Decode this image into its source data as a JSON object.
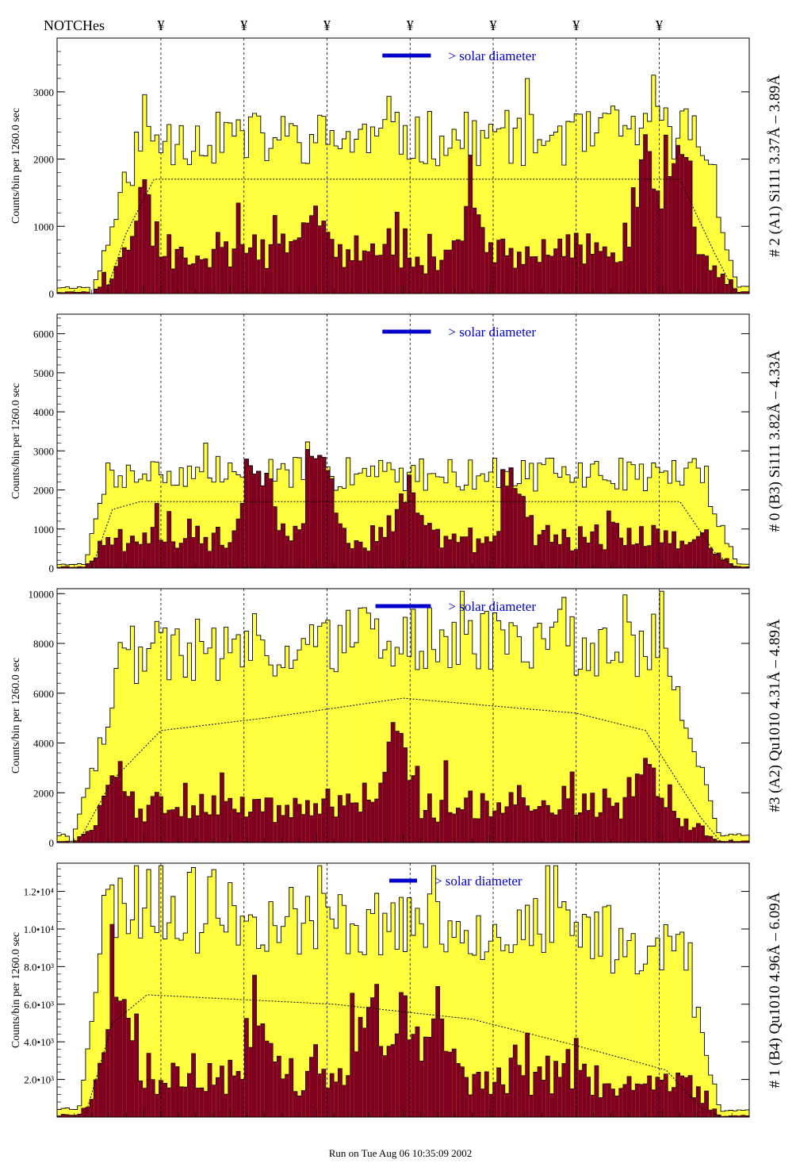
{
  "header": {
    "label": "NOTCHes",
    "marker_glyph": "¥"
  },
  "footer": "Run on Tue Aug 06 10:35:09 2002",
  "colors": {
    "fill_total": "#ffff40",
    "fill_sub": "#800020",
    "outline": "#000000",
    "annotation": "#0000cc"
  },
  "notch_positions": [
    0.15,
    0.27,
    0.39,
    0.51,
    0.63,
    0.75,
    0.87
  ],
  "chart_data": [
    {
      "type": "histogram",
      "ylabel": "Counts/bin per   1260.0 sec",
      "side_title": "# 2 (A1) Si111  3.37Å – 3.89Å",
      "ylim": [
        0,
        3800
      ],
      "yticks": [
        0,
        1000,
        2000,
        3000
      ],
      "ytick_labels": [
        "0",
        "1000",
        "2000",
        "3000"
      ],
      "solar_label": "> solar diameter",
      "solar_bar": [
        0.47,
        0.54
      ],
      "profile": {
        "start": 0.05,
        "ramp_end": 0.12,
        "fall_start": 0.93,
        "end": 0.985,
        "plateau": [
          0.5,
          0.5,
          0.5,
          0.5,
          0.6
        ],
        "peak": 2300,
        "seed": 11
      },
      "sub_profile": {
        "base": 0.25,
        "peaks": [
          [
            0.12,
            1000
          ],
          [
            0.37,
            700
          ],
          [
            0.6,
            650
          ],
          [
            0.85,
            1700
          ],
          [
            0.9,
            1600
          ]
        ],
        "seed": 31
      },
      "baseline_curve": [
        [
          0.07,
          0
        ],
        [
          0.1,
          900
        ],
        [
          0.14,
          1700
        ],
        [
          0.9,
          1700
        ],
        [
          0.95,
          600
        ],
        [
          0.98,
          0
        ]
      ]
    },
    {
      "type": "histogram",
      "ylabel": "Counts/bin per   1260.0 sec",
      "side_title": "# 0 (B3) Si111  3.82Å – 4.33Å",
      "ylim": [
        0,
        6500
      ],
      "yticks": [
        0,
        1000,
        2000,
        3000,
        4000,
        5000,
        6000
      ],
      "ytick_labels": [
        "0",
        "1000",
        "2000",
        "3000",
        "4000",
        "5000",
        "6000"
      ],
      "solar_label": "> solar diameter",
      "solar_bar": [
        0.47,
        0.54
      ],
      "profile": {
        "start": 0.04,
        "ramp_end": 0.07,
        "fall_start": 0.93,
        "end": 0.985,
        "plateau": [
          0.5,
          0.55,
          0.5,
          0.5,
          0.5
        ],
        "peak": 2400,
        "seed": 7
      },
      "sub_profile": {
        "base": 0.3,
        "peaks": [
          [
            0.29,
            4200
          ],
          [
            0.38,
            3300
          ],
          [
            0.51,
            1500
          ],
          [
            0.66,
            1600
          ]
        ],
        "seed": 43
      },
      "baseline_curve": [
        [
          0.05,
          0
        ],
        [
          0.08,
          1500
        ],
        [
          0.12,
          1700
        ],
        [
          0.9,
          1700
        ],
        [
          0.95,
          400
        ],
        [
          0.98,
          0
        ]
      ]
    },
    {
      "type": "histogram",
      "ylabel": "Counts/bin per   1260.0 sec",
      "side_title": "#3 (A2) Qu1010  4.31Å – 4.89Å",
      "ylim": [
        0,
        10200
      ],
      "yticks": [
        0,
        2000,
        4000,
        6000,
        8000,
        10000
      ],
      "ytick_labels": [
        "0",
        "2000",
        "4000",
        "6000",
        "8000",
        "10000"
      ],
      "solar_label": "> solar diameter",
      "solar_bar": [
        0.46,
        0.54
      ],
      "profile": {
        "start": 0.02,
        "ramp_end": 0.1,
        "fall_start": 0.88,
        "end": 0.96,
        "plateau": [
          0.85,
          0.9,
          1.0,
          0.95,
          0.9
        ],
        "peak": 6500,
        "seed": 19
      },
      "sub_profile": {
        "base": 0.18,
        "peaks": [
          [
            0.08,
            1800
          ],
          [
            0.49,
            3000
          ],
          [
            0.85,
            1800
          ]
        ],
        "seed": 53
      },
      "baseline_curve": [
        [
          0.03,
          0
        ],
        [
          0.08,
          2500
        ],
        [
          0.15,
          4500
        ],
        [
          0.3,
          5000
        ],
        [
          0.5,
          5800
        ],
        [
          0.75,
          5200
        ],
        [
          0.85,
          4500
        ],
        [
          0.93,
          1000
        ],
        [
          0.96,
          0
        ]
      ]
    },
    {
      "type": "histogram",
      "ylabel": "Counts/bin per   1260.0 sec",
      "side_title": "# 1 (B4) Qu1010 4.96Å – 6.09Å",
      "ylim": [
        0,
        13500
      ],
      "yticks": [
        2000,
        4000,
        6000,
        8000,
        10000,
        12000
      ],
      "ytick_labels": [
        "2.0•10³",
        "4.0•10³",
        "6.0•10³",
        "8.0•10³",
        "1.0•10⁴",
        "1.2•10⁴"
      ],
      "solar_label": "> solar diameter",
      "solar_bar": [
        0.48,
        0.52
      ],
      "profile": {
        "start": 0.03,
        "ramp_end": 0.07,
        "fall_start": 0.9,
        "end": 0.96,
        "plateau": [
          1.0,
          0.85,
          0.8,
          0.7,
          0.55
        ],
        "peak": 9000,
        "seed": 23
      },
      "sub_profile": {
        "base": 0.2,
        "peaks": [
          [
            0.09,
            4500
          ],
          [
            0.3,
            3000
          ],
          [
            0.45,
            5000
          ],
          [
            0.5,
            4500
          ],
          [
            0.55,
            3500
          ]
        ],
        "seed": 61
      },
      "baseline_curve": [
        [
          0.04,
          0
        ],
        [
          0.08,
          5000
        ],
        [
          0.13,
          6500
        ],
        [
          0.4,
          6000
        ],
        [
          0.6,
          5200
        ],
        [
          0.75,
          3800
        ],
        [
          0.88,
          2500
        ],
        [
          0.93,
          500
        ],
        [
          0.96,
          0
        ]
      ]
    }
  ]
}
